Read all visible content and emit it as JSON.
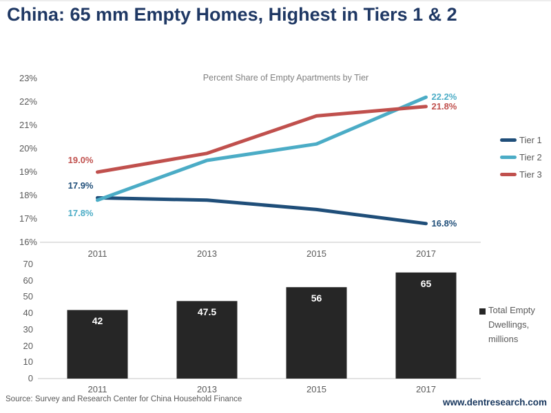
{
  "title": "China: 65 mm Empty Homes, Highest in Tiers 1 & 2",
  "footer": {
    "source": "Source: Survey and Research Center for China Household Finance",
    "website": "www.dentresearch.com"
  },
  "colors": {
    "title": "#1F3864",
    "tier1": "#1F4E79",
    "tier2": "#4BACC6",
    "tier3": "#C0504D",
    "bar": "#262626",
    "axis_text": "#595959",
    "gridline": "#D9D9D9",
    "website": "#17365D"
  },
  "chart_data": [
    {
      "type": "line",
      "title": "Percent Share of Empty Apartments by Tier",
      "categories": [
        "2011",
        "2013",
        "2015",
        "2017"
      ],
      "series": [
        {
          "name": "Tier 1",
          "color": "#1F4E79",
          "values": [
            17.9,
            17.8,
            17.4,
            16.8
          ],
          "first_label": "17.9%",
          "last_label": "16.8%"
        },
        {
          "name": "Tier 2",
          "color": "#4BACC6",
          "values": [
            17.8,
            19.5,
            20.2,
            22.2
          ],
          "first_label": "17.8%",
          "last_label": "22.2%"
        },
        {
          "name": "Tier 3",
          "color": "#C0504D",
          "values": [
            19.0,
            19.8,
            21.4,
            21.8
          ],
          "first_label": "19.0%",
          "last_label": "21.8%"
        }
      ],
      "ylim": [
        16,
        23
      ],
      "yticks": [
        {
          "value": 16,
          "label": "16%"
        },
        {
          "value": 17,
          "label": "17%"
        },
        {
          "value": 18,
          "label": "18%"
        },
        {
          "value": 19,
          "label": "19%"
        },
        {
          "value": 20,
          "label": "20%"
        },
        {
          "value": 21,
          "label": "21%"
        },
        {
          "value": 22,
          "label": "22%"
        },
        {
          "value": 23,
          "label": "23%"
        }
      ],
      "grid": "baseline-only",
      "legend_position": "right"
    },
    {
      "type": "bar",
      "categories": [
        "2011",
        "2013",
        "2015",
        "2017"
      ],
      "values": [
        42,
        47.5,
        56,
        65
      ],
      "value_labels": [
        "42",
        "47.5",
        "56",
        "65"
      ],
      "legend": "Total Empty Dwellings, millions",
      "ylim": [
        0,
        70
      ],
      "yticks": [
        {
          "value": 0,
          "label": "0"
        },
        {
          "value": 10,
          "label": "10"
        },
        {
          "value": 20,
          "label": "20"
        },
        {
          "value": 30,
          "label": "30"
        },
        {
          "value": 40,
          "label": "40"
        },
        {
          "value": 50,
          "label": "50"
        },
        {
          "value": 60,
          "label": "60"
        },
        {
          "value": 70,
          "label": "70"
        }
      ],
      "grid": "baseline-only",
      "legend_position": "right"
    }
  ]
}
